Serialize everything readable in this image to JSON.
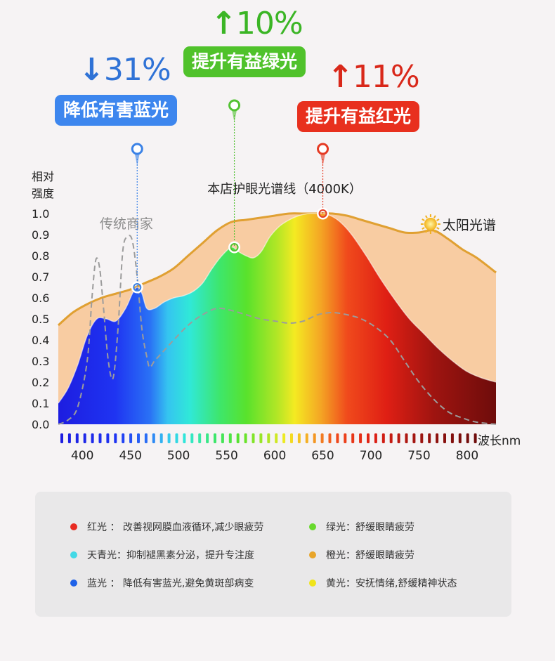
{
  "chart_data": {
    "type": "area",
    "ylabel": "相对\n强度",
    "xlabel": "波长nm",
    "xlim": [
      375,
      830
    ],
    "ylim": [
      0,
      1.0
    ],
    "x_ticks": [
      400,
      450,
      500,
      550,
      600,
      650,
      700,
      750,
      800
    ],
    "y_ticks": [
      "0.0",
      "0.1",
      "0.2",
      "0.3",
      "0.4",
      "0.5",
      "0.6",
      "0.7",
      "0.8",
      "0.9",
      "1.0"
    ],
    "series": [
      {
        "name": "本店护眼光谱线（4000K）",
        "color": "#e62a1c",
        "x": [
          375,
          385,
          395,
          405,
          415,
          425,
          435,
          445,
          452,
          457,
          462,
          467,
          475,
          485,
          495,
          505,
          515,
          525,
          535,
          545,
          555,
          562,
          570,
          578,
          586,
          595,
          605,
          615,
          625,
          635,
          645,
          650,
          658,
          668,
          680,
          695,
          710,
          725,
          740,
          755,
          770,
          785,
          800,
          815,
          830
        ],
        "y": [
          0.1,
          0.17,
          0.28,
          0.42,
          0.5,
          0.5,
          0.49,
          0.55,
          0.62,
          0.65,
          0.62,
          0.55,
          0.55,
          0.58,
          0.6,
          0.61,
          0.63,
          0.67,
          0.74,
          0.8,
          0.84,
          0.82,
          0.8,
          0.79,
          0.82,
          0.89,
          0.94,
          0.97,
          0.99,
          1.0,
          1.0,
          1.0,
          0.99,
          0.96,
          0.9,
          0.8,
          0.69,
          0.59,
          0.5,
          0.43,
          0.36,
          0.3,
          0.25,
          0.22,
          0.2
        ]
      },
      {
        "name": "太阳光谱",
        "color": "#e6a53a",
        "x": [
          375,
          390,
          405,
          420,
          435,
          450,
          465,
          480,
          495,
          510,
          525,
          540,
          555,
          570,
          585,
          600,
          615,
          630,
          645,
          660,
          675,
          690,
          705,
          720,
          735,
          750,
          765,
          780,
          795,
          810,
          830
        ],
        "y": [
          0.47,
          0.53,
          0.57,
          0.6,
          0.62,
          0.64,
          0.67,
          0.7,
          0.74,
          0.8,
          0.86,
          0.92,
          0.96,
          0.97,
          0.98,
          0.99,
          1.0,
          1.0,
          1.0,
          1.0,
          0.99,
          0.97,
          0.95,
          0.93,
          0.91,
          0.91,
          0.92,
          0.88,
          0.83,
          0.79,
          0.72
        ]
      },
      {
        "name": "传统商家",
        "color": "#a9a9a9",
        "x": [
          375,
          385,
          395,
          405,
          410,
          414,
          418,
          422,
          427,
          432,
          437,
          442,
          447,
          452,
          457,
          462,
          467,
          470,
          475,
          485,
          495,
          510,
          525,
          540,
          555,
          570,
          585,
          600,
          615,
          630,
          645,
          660,
          675,
          690,
          705,
          720,
          735,
          750,
          765,
          780,
          795,
          810,
          830
        ],
        "y": [
          0.0,
          0.02,
          0.08,
          0.3,
          0.6,
          0.78,
          0.74,
          0.55,
          0.3,
          0.22,
          0.45,
          0.82,
          0.89,
          0.87,
          0.7,
          0.45,
          0.32,
          0.27,
          0.3,
          0.35,
          0.4,
          0.47,
          0.52,
          0.55,
          0.54,
          0.52,
          0.5,
          0.49,
          0.48,
          0.49,
          0.52,
          0.53,
          0.52,
          0.5,
          0.46,
          0.4,
          0.3,
          0.2,
          0.12,
          0.06,
          0.03,
          0.01,
          0.0
        ]
      }
    ],
    "markers": [
      {
        "x": 457,
        "y": 0.65,
        "color": "#3b82e6"
      },
      {
        "x": 558,
        "y": 0.84,
        "color": "#53c233"
      },
      {
        "x": 650,
        "y": 1.0,
        "color": "#e53a23"
      }
    ],
    "annotations": [
      {
        "arrow": "↓",
        "text": "31%",
        "label": "降低有害蓝光",
        "color": "#2f72d6",
        "badge": "#3d86ee"
      },
      {
        "arrow": "↑",
        "text": "10%",
        "label": "提升有益绿光",
        "color": "#3bb525",
        "badge": "#50c22b"
      },
      {
        "arrow": "↑",
        "text": "11%",
        "label": "提升有益红光",
        "color": "#d9281a",
        "badge": "#e8301e"
      }
    ]
  },
  "legend": [
    {
      "label": "红光 ： 改善视网膜血液循环,减少眼疲劳",
      "color": "#e82b22"
    },
    {
      "label": "绿光：舒缓眼睛疲劳",
      "color": "#68d92d"
    },
    {
      "label": "天青光：抑制褪黑素分泌，提升专注度",
      "color": "#43d9e6"
    },
    {
      "label": "橙光：舒缓眼睛疲劳",
      "color": "#e8a52a"
    },
    {
      "label": "蓝光 ： 降低有害蓝光,避免黄斑部病变",
      "color": "#1f62e8"
    },
    {
      "label": "黄光：安抚情绪,舒缓精神状态",
      "color": "#f0e41a"
    }
  ]
}
